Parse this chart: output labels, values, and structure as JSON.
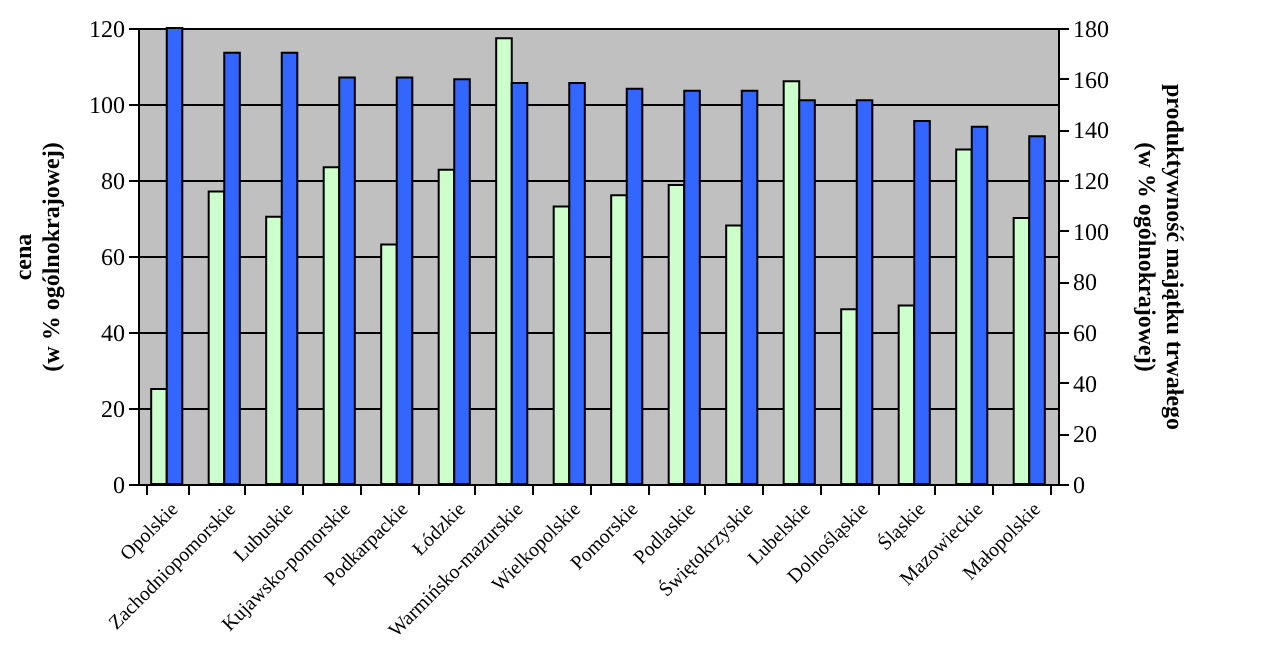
{
  "chart_data": {
    "type": "bar",
    "categories": [
      "Opolskie",
      "Zachodniopomorskie",
      "Lubuskie",
      "Kujawsko-pomorskie",
      "Podkarpackie",
      "Łódzkie",
      "Warmińsko-mazurskie",
      "Wielkopolskie",
      "Pomorskie",
      "Podlaskie",
      "Świętokrzyskie",
      "Lubelskie",
      "Dolnośląskie",
      "Śląskie",
      "Mazowieckie",
      "Małopolskie"
    ],
    "series": [
      {
        "color": "#ccffcc",
        "axis": "y2",
        "values": [
          37.5,
          115.5,
          105.5,
          125,
          94.5,
          124,
          176,
          109.5,
          114,
          118,
          102,
          159,
          69,
          70.5,
          132,
          105
        ]
      },
      {
        "color": "#3366ff",
        "axis": "y",
        "values": [
          120,
          113.5,
          113.5,
          107,
          107,
          106.5,
          105.5,
          105.5,
          104,
          103.5,
          103.5,
          101,
          101,
          95.5,
          94,
          91.5
        ]
      }
    ],
    "ylabel": "cena\n(w % ogólnokrajowej)",
    "y2label": "produktywność majątku trwałego\n(w % ogólnokrajowej)",
    "ylim": [
      0,
      120
    ],
    "yticks": [
      0,
      20,
      40,
      60,
      80,
      100,
      120
    ],
    "y2lim": [
      0,
      180
    ],
    "y2ticks": [
      0,
      20,
      40,
      60,
      80,
      100,
      120,
      140,
      160,
      180
    ],
    "grid": "y"
  }
}
